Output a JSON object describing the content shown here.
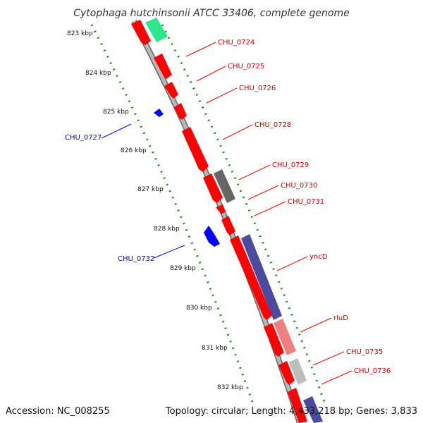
{
  "title": "Cytophaga hutchinsonii ATCC 33406, complete genome",
  "accession": "Accession: NC_008255",
  "topology": "Topology: circular; Length: 4,433,218 bp; Genes: 3,833",
  "ticks": [
    "823 kbp",
    "824 kbp",
    "825 kbp",
    "826 kbp",
    "827 kbp",
    "828 kbp",
    "829 kbp",
    "830 kbp",
    "831 kbp",
    "832 kbp"
  ],
  "gene_labels": {
    "CHU_0724": "CHU_0724",
    "CHU_0725": "CHU_0725",
    "CHU_0726": "CHU_0726",
    "CHU_0728": "CHU_0728",
    "CHU_0729": "CHU_0729",
    "CHU_0730": "CHU_0730",
    "CHU_0731": "CHU_0731",
    "yncD": "yncD",
    "rluD": "rluD",
    "CHU_0735": "CHU_0735",
    "CHU_0736": "CHU_0736",
    "CHU_0727": "CHU_0727",
    "CHU_0732": "CHU_0732"
  },
  "colors": {
    "forward_gene": "#ff0000",
    "reverse_gene": "#0000ff",
    "backbone": "#999999",
    "tick_dots": "#228b22",
    "label_forward": "#cc0000",
    "label_reverse": "#0000cc"
  }
}
